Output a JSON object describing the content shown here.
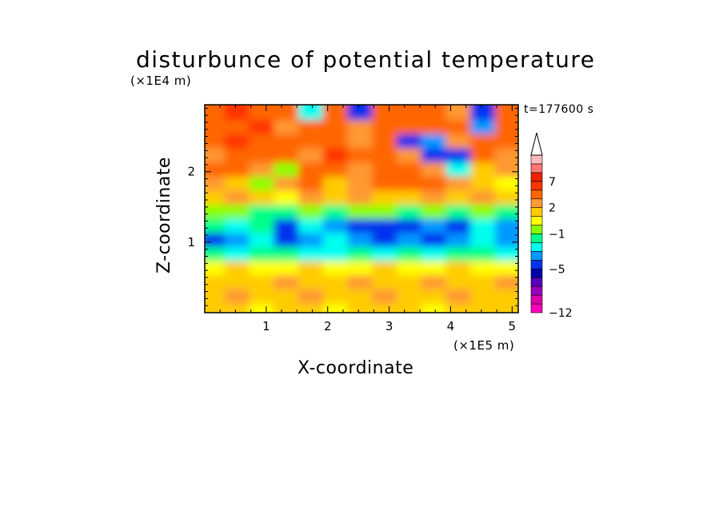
{
  "chart_data": {
    "type": "heatmap",
    "title": "disturbunce of potential temperature",
    "xlabel": "X-coordinate",
    "ylabel": "Z-coordinate",
    "x_unit": "(×1E5 m)",
    "y_unit": "(×1E4 m)",
    "time_label": "t=177600 s",
    "xlim": [
      0,
      5.1
    ],
    "ylim": [
      0,
      2.95
    ],
    "x_ticks": [
      1,
      2,
      3,
      4,
      5
    ],
    "x_tick_labels": [
      "1",
      "2",
      "3",
      "4",
      "5"
    ],
    "y_ticks": [
      1,
      2
    ],
    "y_tick_labels": [
      "1",
      "2"
    ],
    "z_rows": [
      0.1,
      0.3,
      0.5,
      0.7,
      0.9,
      1.1,
      1.3,
      1.5,
      1.7,
      1.9,
      2.1,
      2.3,
      2.5,
      2.7,
      2.9
    ],
    "x_cols": [
      0.2,
      0.6,
      1.0,
      1.4,
      1.8,
      2.2,
      2.6,
      3.0,
      3.4,
      3.8,
      4.2,
      4.6,
      5.0
    ],
    "values": [
      [
        1,
        1,
        0,
        1,
        1,
        0,
        1,
        1,
        1,
        0,
        1,
        1,
        1
      ],
      [
        1,
        2,
        1,
        1,
        2,
        1,
        1,
        2,
        1,
        1,
        2,
        1,
        1
      ],
      [
        1,
        1,
        1,
        2,
        1,
        1,
        2,
        1,
        1,
        2,
        1,
        1,
        2
      ],
      [
        0,
        1,
        0,
        0,
        1,
        0,
        0,
        1,
        0,
        0,
        1,
        0,
        0
      ],
      [
        -2,
        -3,
        -2,
        -2,
        -3,
        -3,
        -2,
        -3,
        -2,
        -3,
        -2,
        -2,
        -3
      ],
      [
        -5,
        -4,
        -3,
        -5,
        -4,
        -3,
        -4,
        -5,
        -4,
        -5,
        -4,
        -3,
        -4
      ],
      [
        -2,
        -3,
        -2,
        -5,
        -3,
        -4,
        -5,
        -5,
        -5,
        -4,
        -5,
        -3,
        -4
      ],
      [
        -1,
        -1,
        -2,
        -2,
        -1,
        -2,
        -1,
        -1,
        -2,
        -1,
        -2,
        -1,
        -2
      ],
      [
        1,
        2,
        1,
        0,
        2,
        1,
        2,
        1,
        1,
        2,
        1,
        2,
        1
      ],
      [
        2,
        1,
        -1,
        2,
        3,
        1,
        2,
        3,
        4,
        3,
        2,
        1,
        0
      ],
      [
        3,
        4,
        2,
        -1,
        4,
        3,
        2,
        4,
        3,
        2,
        -3,
        1,
        2
      ],
      [
        2,
        3,
        4,
        3,
        2,
        5,
        4,
        3,
        2,
        -5,
        -5,
        3,
        2
      ],
      [
        4,
        5,
        3,
        4,
        3,
        4,
        2,
        3,
        -5,
        -4,
        2,
        3,
        4
      ],
      [
        3,
        4,
        5,
        2,
        4,
        3,
        2,
        3,
        4,
        3,
        3,
        -4,
        3
      ],
      [
        4,
        5,
        4,
        3,
        -3,
        3,
        -5,
        4,
        3,
        4,
        2,
        -5,
        4
      ]
    ],
    "colorbar": {
      "levels": [
        -12,
        -10,
        -8,
        -7,
        -6,
        -5,
        -4,
        -3,
        -2,
        -1,
        0,
        1,
        2,
        3,
        5,
        7,
        8,
        9,
        10
      ],
      "colors": [
        "#ff00bb",
        "#dd00aa",
        "#9900bb",
        "#5500bb",
        "#0000aa",
        "#0033ee",
        "#0099ff",
        "#00ffee",
        "#00ff88",
        "#88ff00",
        "#ffff00",
        "#ffcc00",
        "#ff9933",
        "#ff6600",
        "#ff3300",
        "#ee2200",
        "#ff7777",
        "#ffbbbb"
      ],
      "extend_max_color": "#ffffff",
      "tick_values": [
        -12,
        -5,
        -1,
        2,
        7
      ],
      "tick_labels": [
        "−12",
        "−5",
        "−1",
        "2",
        "7"
      ]
    },
    "legend_position": "right",
    "grid": false
  }
}
